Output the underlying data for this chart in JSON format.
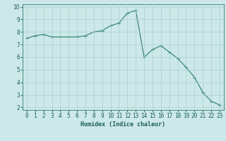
{
  "x": [
    0,
    1,
    2,
    3,
    4,
    5,
    6,
    7,
    8,
    9,
    10,
    11,
    12,
    13,
    14,
    15,
    16,
    17,
    18,
    19,
    20,
    21,
    22,
    23
  ],
  "y": [
    7.5,
    7.7,
    7.8,
    7.6,
    7.6,
    7.6,
    7.6,
    7.7,
    8.0,
    8.1,
    8.5,
    8.7,
    9.5,
    9.7,
    6.0,
    6.6,
    6.9,
    6.4,
    5.9,
    5.2,
    4.4,
    3.2,
    2.5,
    2.2
  ],
  "line_color": "#2e7d6e",
  "marker": "+",
  "marker_color": "#2e7d6e",
  "bg_color": "#cce8e8",
  "grid_color": "#aad0d0",
  "xlabel": "Humidex (Indice chaleur)",
  "xlim_min": -0.5,
  "xlim_max": 23.5,
  "ylim_min": 1.8,
  "ylim_max": 10.2,
  "yticks": [
    2,
    3,
    4,
    5,
    6,
    7,
    8,
    9,
    10
  ],
  "xticks": [
    0,
    1,
    2,
    3,
    4,
    5,
    6,
    7,
    8,
    9,
    10,
    11,
    12,
    13,
    14,
    15,
    16,
    17,
    18,
    19,
    20,
    21,
    22,
    23
  ],
  "font_color": "#1a5f5a",
  "axis_color": "#2e7d6e",
  "tick_color": "#2e7d6e",
  "label_fontsize": 6.0,
  "tick_fontsize": 5.5
}
